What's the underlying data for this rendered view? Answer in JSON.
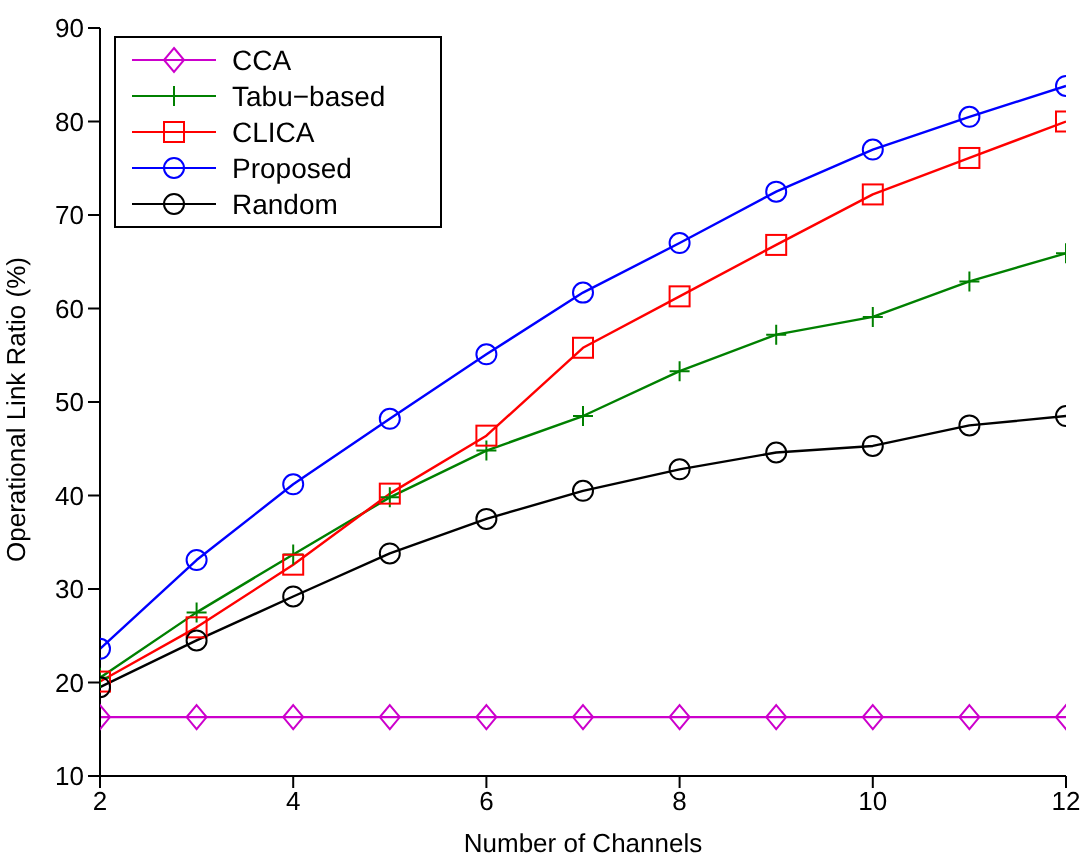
{
  "chart_data": {
    "type": "line",
    "xlabel": "Number of Channels",
    "ylabel": "Operational Link Ratio (%)",
    "x": [
      2,
      3,
      4,
      5,
      6,
      7,
      8,
      9,
      10,
      11,
      12
    ],
    "xlim": [
      2,
      12
    ],
    "xticks": [
      2,
      4,
      6,
      8,
      10,
      12
    ],
    "ylim": [
      10,
      90
    ],
    "yticks": [
      10,
      20,
      30,
      40,
      50,
      60,
      70,
      80,
      90
    ],
    "grid": false,
    "legend": "top left",
    "line_style": "solid",
    "series": [
      {
        "name": "CCA",
        "color": "#cc00cc",
        "marker": "diamond",
        "values": [
          16.3,
          16.3,
          16.3,
          16.3,
          16.3,
          16.3,
          16.3,
          16.3,
          16.3,
          16.3,
          16.3
        ]
      },
      {
        "name": "Tabu−based",
        "color": "#008000",
        "marker": "cross",
        "values": [
          20.5,
          27.5,
          33.7,
          39.8,
          44.8,
          48.5,
          53.3,
          57.2,
          59.1,
          62.9,
          65.9
        ]
      },
      {
        "name": "CLICA",
        "color": "#ff0000",
        "marker": "square",
        "values": [
          20.1,
          25.9,
          32.6,
          40.2,
          46.4,
          55.8,
          61.3,
          66.8,
          72.2,
          76.1,
          80.0
        ]
      },
      {
        "name": "Proposed",
        "color": "#0000ff",
        "marker": "circle",
        "values": [
          23.6,
          33.1,
          41.2,
          48.2,
          55.1,
          61.7,
          67.0,
          72.5,
          77.0,
          80.5,
          83.8
        ]
      },
      {
        "name": "Random",
        "color": "#000000",
        "marker": "circle",
        "values": [
          19.5,
          24.5,
          29.2,
          33.8,
          37.5,
          40.5,
          42.8,
          44.6,
          45.3,
          47.5,
          48.5
        ]
      }
    ]
  }
}
